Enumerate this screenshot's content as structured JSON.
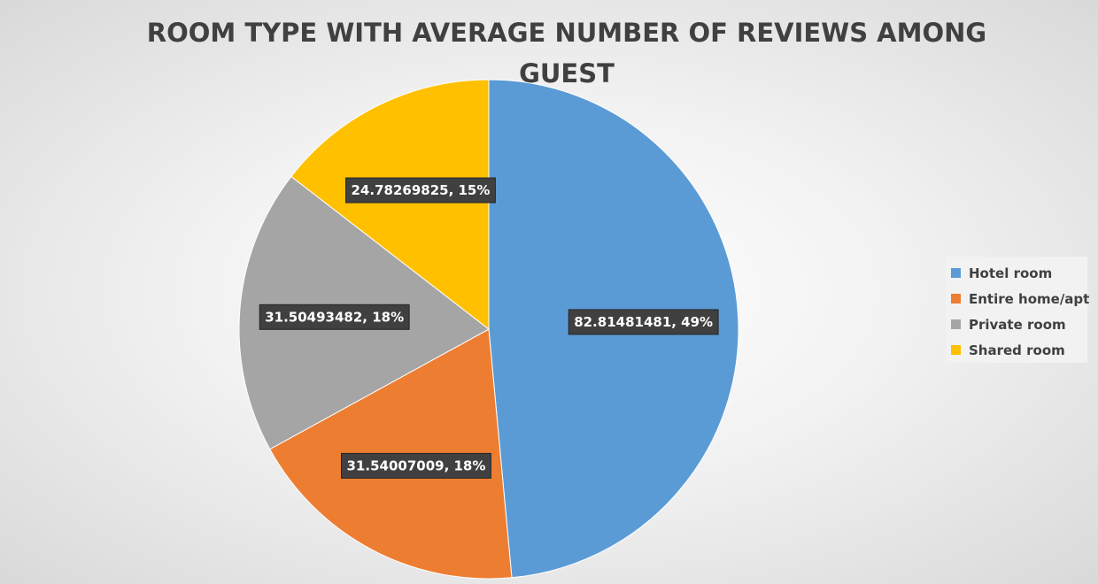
{
  "chart_data": {
    "type": "pie",
    "title": "ROOM TYPE WITH AVERAGE NUMBER OF REVIEWS AMONG GUEST",
    "title_lines": [
      "ROOM TYPE WITH AVERAGE NUMBER OF REVIEWS AMONG",
      "GUEST"
    ],
    "legend_position": "right",
    "slices": [
      {
        "name": "Hotel room",
        "value": 82.81481481,
        "percent": "49%",
        "label": "82.81481481, 49%",
        "color": "#5B9BD5"
      },
      {
        "name": "Entire home/apt",
        "value": 31.54007009,
        "percent": "18%",
        "label": "31.54007009, 18%",
        "color": "#ED7D31"
      },
      {
        "name": "Private room",
        "value": 31.50493482,
        "percent": "18%",
        "label": "31.50493482, 18%",
        "color": "#A5A5A5"
      },
      {
        "name": "Shared room",
        "value": 24.78269825,
        "percent": "15%",
        "label": "24.78269825, 15%",
        "color": "#FFC000"
      }
    ]
  }
}
